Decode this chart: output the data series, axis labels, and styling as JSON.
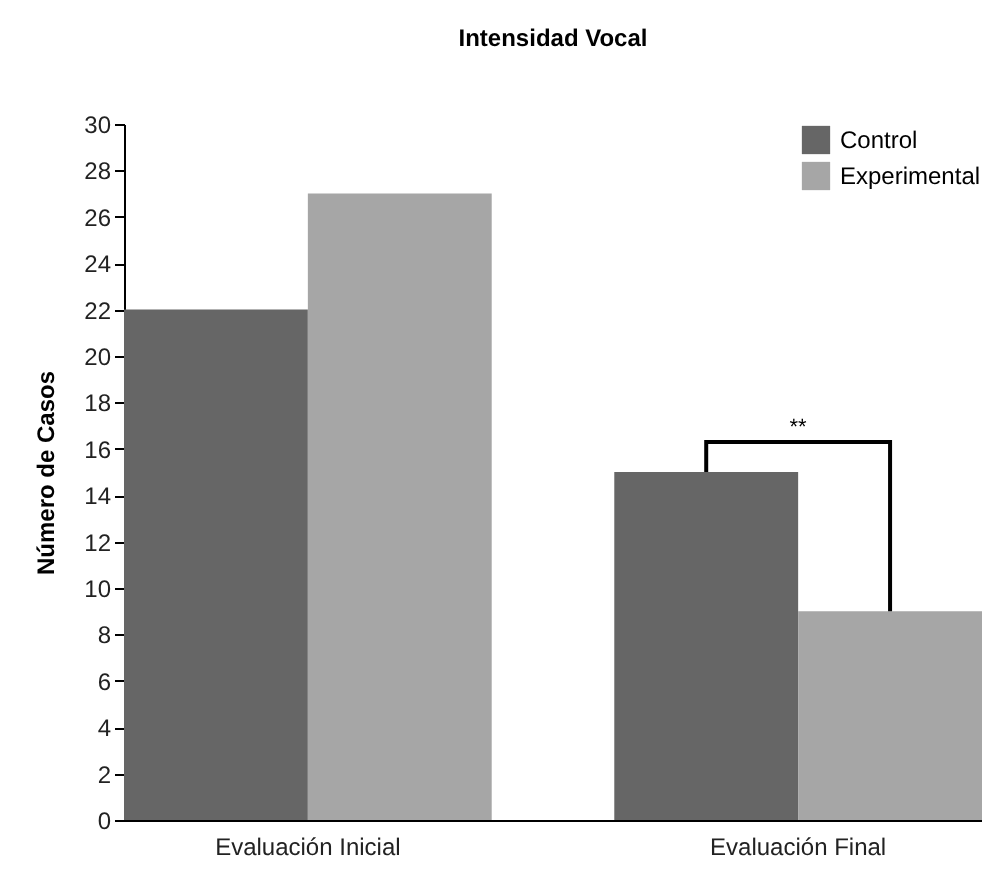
{
  "chart_data": {
    "type": "bar",
    "title": "Intensidad Vocal",
    "ylabel": "Número de Casos",
    "categories": [
      "Evaluación Inicial",
      "Evaluación Final"
    ],
    "series": [
      {
        "name": "Control",
        "color": "#666666",
        "values": [
          22,
          15
        ]
      },
      {
        "name": "Experimental",
        "color": "#a6a6a6",
        "values": [
          27,
          9
        ]
      }
    ],
    "ylim": [
      0,
      30
    ],
    "yticks": [
      0,
      2,
      4,
      6,
      8,
      10,
      12,
      14,
      16,
      18,
      20,
      22,
      24,
      26,
      28,
      30
    ],
    "grid": false,
    "legend": "top right",
    "annotations": [
      "**"
    ]
  }
}
